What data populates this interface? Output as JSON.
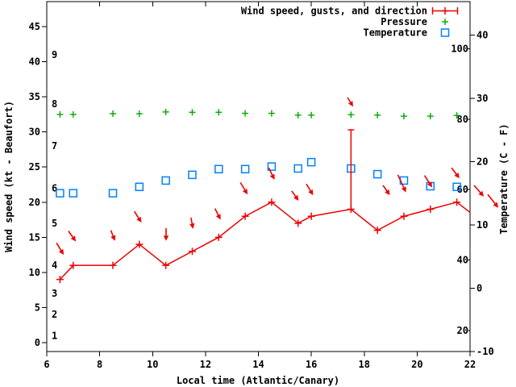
{
  "colors": {
    "wind": "#ee0000",
    "pressure": "#00a800",
    "temperature": "#0080ff",
    "axis": "#000000",
    "background": "#ffffff"
  },
  "axes": {
    "x": {
      "label": "Local time (Atlantic/Canary)",
      "ticks": [
        6,
        8,
        10,
        12,
        14,
        16,
        18,
        20,
        22
      ],
      "range": [
        6,
        22
      ]
    },
    "y_left": {
      "label": "Wind speed (kt - Beaufort)",
      "ticks": [
        0,
        5,
        10,
        15,
        20,
        25,
        30,
        35,
        40,
        45
      ],
      "beaufort_labels": [
        {
          "label": "1",
          "kt": 1
        },
        {
          "label": "2",
          "kt": 4
        },
        {
          "label": "3",
          "kt": 7
        },
        {
          "label": "4",
          "kt": 11
        },
        {
          "label": "5",
          "kt": 17
        },
        {
          "label": "6",
          "kt": 22
        },
        {
          "label": "7",
          "kt": 28
        },
        {
          "label": "8",
          "kt": 34
        },
        {
          "label": "9",
          "kt": 41
        }
      ]
    },
    "y_right": {
      "label": "Temperature (C - F)",
      "celsius_ticks": [
        40,
        30,
        20,
        10,
        0,
        -10
      ],
      "fahrenheit_labels": [
        {
          "label": "100",
          "c": 37.78
        },
        {
          "label": "80",
          "c": 26.67
        },
        {
          "label": "60",
          "c": 15.56
        },
        {
          "label": "40",
          "c": 4.44
        },
        {
          "label": "20",
          "c": -6.67
        }
      ],
      "range_c": [
        -10,
        45.2
      ]
    }
  },
  "legend": {
    "entries": [
      {
        "label": "Wind speed, gusts, and direction",
        "series": "wind",
        "marker": "errorbar-plus"
      },
      {
        "label": "Pressure",
        "series": "pressure",
        "marker": "plus"
      },
      {
        "label": "Temperature",
        "series": "temperature",
        "marker": "open-square"
      }
    ]
  },
  "chart_data": {
    "type": "line",
    "x_times": [
      6.5,
      7,
      8.5,
      9.5,
      10.5,
      11.5,
      12.5,
      13.5,
      14.5,
      15.5,
      16,
      17.5,
      18.5,
      19.5,
      20.5,
      21.5
    ],
    "series": [
      {
        "name": "Wind speed, gusts, and direction",
        "axis": "left_kt",
        "marker": "plus",
        "color_key": "wind",
        "values_kt": [
          9,
          11,
          11,
          14,
          11,
          13,
          15,
          18,
          20,
          17,
          18,
          19,
          16,
          18,
          19,
          20
        ],
        "gust": {
          "t": 17.5,
          "from_kt": 19,
          "to_kt": 30.3
        },
        "line_clip_end": {
          "t": 22,
          "kt": 18.55
        }
      },
      {
        "name": "Pressure",
        "axis": "left_kt_position_only",
        "marker": "plus",
        "color_key": "pressure",
        "values_kt": [
          32.5,
          32.5,
          32.6,
          32.6,
          32.85,
          32.8,
          32.8,
          32.65,
          32.65,
          32.4,
          32.4,
          32.45,
          32.4,
          32.25,
          32.25,
          32.35
        ]
      },
      {
        "name": "Temperature",
        "axis": "right_celsius",
        "marker": "open-square",
        "color_key": "temperature",
        "values_c": [
          15,
          15,
          15,
          16,
          17,
          17.9,
          18.8,
          18.8,
          19.2,
          18.9,
          19.9,
          18.9,
          18,
          17,
          16.1,
          16
        ]
      }
    ],
    "wind_direction_arrows": [
      {
        "t1": 6.37,
        "kt1": 14.2,
        "t2": 6.64,
        "kt2": 12.5
      },
      {
        "t1": 6.82,
        "kt1": 15.9,
        "t2": 7.1,
        "kt2": 14.4
      },
      {
        "t1": 8.42,
        "kt1": 16.0,
        "t2": 8.58,
        "kt2": 14.5
      },
      {
        "t1": 9.31,
        "kt1": 18.7,
        "t2": 9.58,
        "kt2": 17.1
      },
      {
        "t1": 10.51,
        "kt1": 16.3,
        "t2": 10.51,
        "kt2": 14.5
      },
      {
        "t1": 11.45,
        "kt1": 17.8,
        "t2": 11.53,
        "kt2": 16.2
      },
      {
        "t1": 12.36,
        "kt1": 19.1,
        "t2": 12.57,
        "kt2": 17.5
      },
      {
        "t1": 13.32,
        "kt1": 22.8,
        "t2": 13.59,
        "kt2": 21.1
      },
      {
        "t1": 14.39,
        "kt1": 24.9,
        "t2": 14.61,
        "kt2": 23.2
      },
      {
        "t1": 15.26,
        "kt1": 21.6,
        "t2": 15.52,
        "kt2": 20.2
      },
      {
        "t1": 15.81,
        "kt1": 22.6,
        "t2": 16.07,
        "kt2": 21.0
      },
      {
        "t1": 17.37,
        "kt1": 34.9,
        "t2": 17.58,
        "kt2": 33.6
      },
      {
        "t1": 18.71,
        "kt1": 22.4,
        "t2": 18.97,
        "kt2": 21.0
      },
      {
        "t1": 19.27,
        "kt1": 23.9,
        "t2": 19.58,
        "kt2": 21.4
      },
      {
        "t1": 20.28,
        "kt1": 23.8,
        "t2": 20.57,
        "kt2": 22.1
      },
      {
        "t1": 21.3,
        "kt1": 24.9,
        "t2": 21.6,
        "kt2": 23.4
      },
      {
        "t1": 22.15,
        "kt1": 22.4,
        "t2": 22.52,
        "kt2": 20.8
      },
      {
        "t1": 22.67,
        "kt1": 21.1,
        "t2": 23.07,
        "kt2": 19.2
      }
    ]
  }
}
